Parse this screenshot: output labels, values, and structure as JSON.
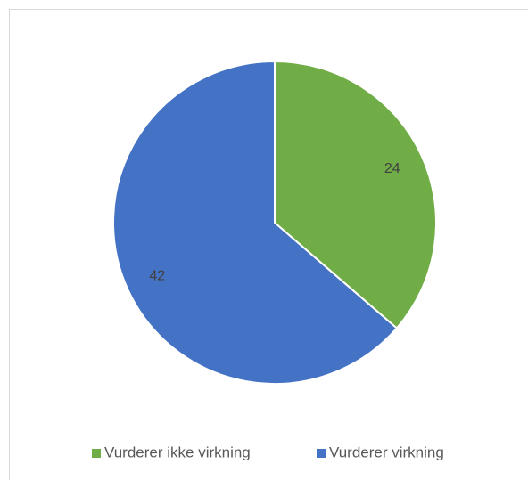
{
  "chart_data": {
    "type": "pie",
    "categories": [
      "Vurderer ikke virkning",
      "Vurderer virkning"
    ],
    "values": [
      24,
      42
    ],
    "colors": [
      "#70ad47",
      "#4472c4"
    ],
    "legend": "bottom"
  }
}
